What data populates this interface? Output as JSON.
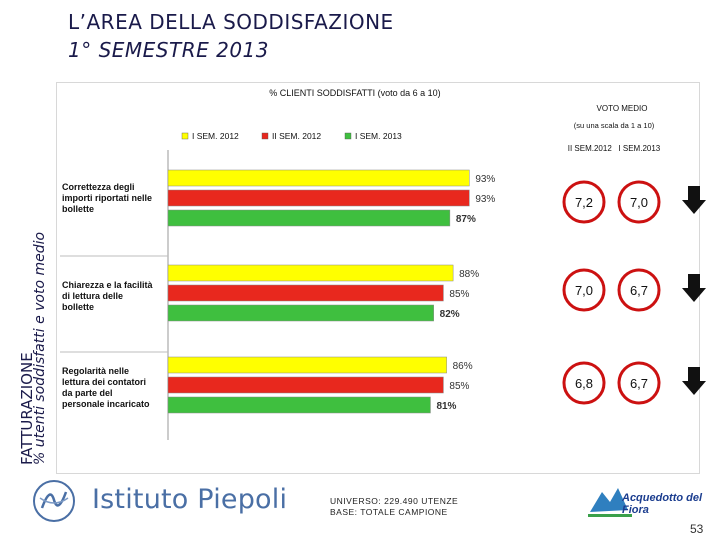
{
  "header": {
    "title_line1": "L’AREA DELLA SODDISFAZIONE",
    "title_line2": "1° SEMESTRE 2013"
  },
  "side_labels": {
    "category": "FATTURAZIONE",
    "subtitle": "% utenti soddisfatti e voto medio"
  },
  "chart_data": {
    "type": "bar",
    "orientation": "horizontal",
    "title": "% CLIENTI SODDISFATTI  (voto da 6 a 10)",
    "categories": [
      "Correttezza degli importi riportati nelle bollette",
      "Chiarezza e la facilità di lettura delle bollette",
      "Regolarità nelle lettura dei contatori da parte del personale incaricato"
    ],
    "category_lines": [
      [
        "Correttezza degli",
        "importi riportati nelle",
        "bollette"
      ],
      [
        "Chiarezza e la facilità",
        "di lettura delle",
        "bollette"
      ],
      [
        "Regolarità nelle",
        "lettura dei contatori",
        "da parte del",
        "personale incaricato"
      ]
    ],
    "series": [
      {
        "name": "I SEM. 2012",
        "color": "#ffff00",
        "values": [
          93,
          88,
          86
        ],
        "labels": [
          "93%",
          "88%",
          "86%"
        ]
      },
      {
        "name": "II SEM. 2012",
        "color": "#e8281e",
        "values": [
          93,
          85,
          85
        ],
        "labels": [
          "93%",
          "85%",
          "85%"
        ]
      },
      {
        "name": "I SEM. 2013",
        "color": "#3fbf3f",
        "values": [
          87,
          82,
          81
        ],
        "labels": [
          "87%",
          "82%",
          "81%"
        ]
      }
    ],
    "xlim": [
      0,
      100
    ],
    "legend_position": "top"
  },
  "vote_panel": {
    "title": "VOTO MEDIO",
    "scale_note": "(su una scala da 1 a 10)",
    "col_headers": "II SEM.2012   I SEM.2013",
    "rows": [
      {
        "ii_sem_2012": "7,2",
        "i_sem_2013": "7,0",
        "trend": "down"
      },
      {
        "ii_sem_2012": "7,0",
        "i_sem_2013": "6,7",
        "trend": "down"
      },
      {
        "ii_sem_2012": "6,8",
        "i_sem_2013": "6,7",
        "trend": "down"
      }
    ],
    "ring_color": "#cc1111"
  },
  "footer": {
    "universe": "UNIVERSO: 229.490 UTENZE",
    "base": "BASE: TOTALE CAMPIONE",
    "logo_left": "Istituto Piepoli",
    "logo_right": "Acquedotto del Fiora",
    "page_number": "53"
  }
}
